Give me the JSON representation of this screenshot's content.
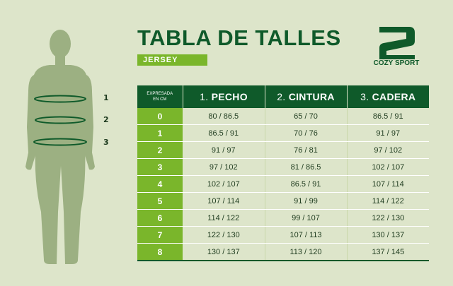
{
  "header": {
    "title": "TABLA DE TALLES",
    "subtitle": "JERSEY"
  },
  "brand": {
    "logo_icon": "cozy-sport-logo",
    "name": "COZY SPORT"
  },
  "figure": {
    "icon": "human-silhouette",
    "markers": [
      "1",
      "2",
      "3"
    ]
  },
  "table": {
    "corner_label_line1": "EXPRESADA",
    "corner_label_line2": "EN CM",
    "columns": [
      {
        "num": "1.",
        "name": "PECHO"
      },
      {
        "num": "2.",
        "name": "CINTURA"
      },
      {
        "num": "3.",
        "name": "CADERA"
      }
    ],
    "rows": [
      {
        "size": "0",
        "pecho": "80 / 86.5",
        "cintura": "65 / 70",
        "cadera": "86.5 / 91"
      },
      {
        "size": "1",
        "pecho": "86.5 / 91",
        "cintura": "70 / 76",
        "cadera": "91 / 97"
      },
      {
        "size": "2",
        "pecho": "91 / 97",
        "cintura": "76 / 81",
        "cadera": "97 / 102"
      },
      {
        "size": "3",
        "pecho": "97 / 102",
        "cintura": "81 / 86.5",
        "cadera": "102 / 107"
      },
      {
        "size": "4",
        "pecho": "102 / 107",
        "cintura": "86.5 / 91",
        "cadera": "107 / 114"
      },
      {
        "size": "5",
        "pecho": "107 / 114",
        "cintura": "91 / 99",
        "cadera": "114 / 122"
      },
      {
        "size": "6",
        "pecho": "114 / 122",
        "cintura": "99 / 107",
        "cadera": "122 / 130"
      },
      {
        "size": "7",
        "pecho": "122 / 130",
        "cintura": "107 / 113",
        "cadera": "130 / 137"
      },
      {
        "size": "8",
        "pecho": "130 / 137",
        "cintura": "113 / 120",
        "cadera": "137 / 145"
      }
    ]
  },
  "colors": {
    "dark_green": "#0f5a2a",
    "light_green": "#7ab62b",
    "background": "#dde5ca",
    "silhouette": "#9cb082"
  }
}
